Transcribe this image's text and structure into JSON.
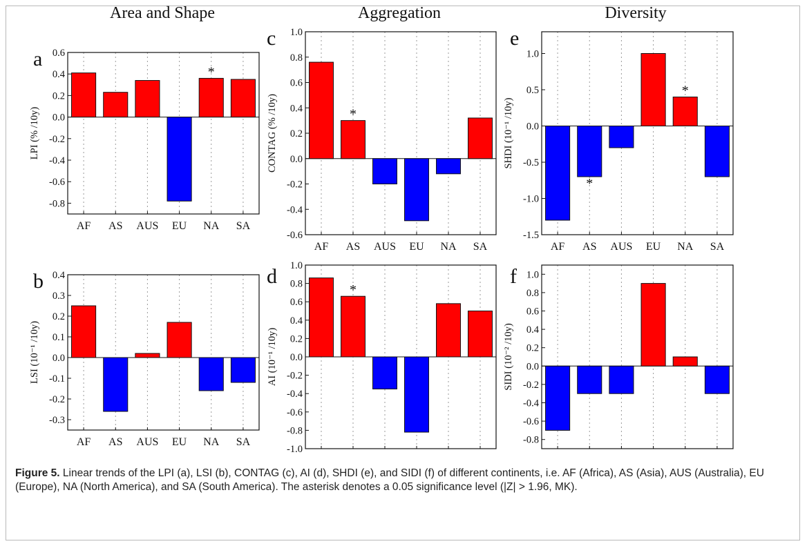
{
  "column_titles": [
    "Area and Shape",
    "Aggregation",
    "Diversity"
  ],
  "caption": {
    "label": "Figure 5.",
    "text": "Linear trends of the LPI (a), LSI (b), CONTAG (c), AI (d), SHDI (e), and SIDI (f) of different continents, i.e. AF (Africa), AS (Asia), AUS (Australia), EU (Europe), NA (North America), and SA (South America). The asterisk denotes a 0.05 significance level (|Z| > 1.96, MK)."
  },
  "colors": {
    "positive": "#ff0000",
    "negative": "#0000ff"
  },
  "chart_data": [
    {
      "panel": "a",
      "type": "bar",
      "ylabel": "LPI (% /10y)",
      "categories": [
        "AF",
        "AS",
        "AUS",
        "EU",
        "NA",
        "SA"
      ],
      "values": [
        0.41,
        0.23,
        0.34,
        -0.78,
        0.36,
        0.35
      ],
      "significant": [
        false,
        false,
        false,
        false,
        true,
        false
      ],
      "ylim": [
        -0.9,
        0.6
      ],
      "yticks": [
        -0.8,
        -0.6,
        -0.4,
        -0.2,
        0.0,
        0.2,
        0.4,
        0.6
      ],
      "tick_labels": [
        "-0.8",
        "-0.6",
        "-0.4",
        "-0.2",
        "0.0",
        "0.2",
        "0.4",
        "0.6"
      ]
    },
    {
      "panel": "b",
      "type": "bar",
      "ylabel": "LSI (10⁻¹ /10y)",
      "categories": [
        "AF",
        "AS",
        "AUS",
        "EU",
        "NA",
        "SA"
      ],
      "values": [
        0.25,
        -0.26,
        0.02,
        0.17,
        -0.16,
        -0.12
      ],
      "significant": [
        false,
        false,
        false,
        false,
        false,
        false
      ],
      "ylim": [
        -0.35,
        0.4
      ],
      "yticks": [
        -0.3,
        -0.2,
        -0.1,
        0.0,
        0.1,
        0.2,
        0.3,
        0.4
      ],
      "tick_labels": [
        "-0.3",
        "-0.2",
        "-0.1",
        "0.0",
        "0.1",
        "0.2",
        "0.3",
        "0.4"
      ]
    },
    {
      "panel": "c",
      "type": "bar",
      "ylabel": "CONTAG (% /10y)",
      "categories": [
        "AF",
        "AS",
        "AUS",
        "EU",
        "NA",
        "SA"
      ],
      "values": [
        0.76,
        0.3,
        -0.2,
        -0.49,
        -0.12,
        0.32
      ],
      "significant": [
        false,
        true,
        false,
        false,
        false,
        false
      ],
      "ylim": [
        -0.6,
        1.0
      ],
      "yticks": [
        -0.6,
        -0.4,
        -0.2,
        0.0,
        0.2,
        0.4,
        0.6,
        0.8,
        1.0
      ],
      "tick_labels": [
        "-0.6",
        "-0.4",
        "-0.2",
        "0.0",
        "0.2",
        "0.4",
        "0.6",
        "0.8",
        "1.0"
      ]
    },
    {
      "panel": "d",
      "type": "bar",
      "ylabel": "AI (10⁻¹ /10y)",
      "categories": [
        "AF",
        "AS",
        "AUS",
        "EU",
        "NA",
        "SA"
      ],
      "values": [
        0.86,
        0.66,
        -0.35,
        -0.82,
        0.58,
        0.5
      ],
      "significant": [
        false,
        true,
        false,
        false,
        false,
        false
      ],
      "ylim": [
        -1.0,
        1.0
      ],
      "yticks": [
        -1.0,
        -0.8,
        -0.6,
        -0.4,
        -0.2,
        0.0,
        0.2,
        0.4,
        0.6,
        0.8,
        1.0
      ],
      "tick_labels": [
        "-1.0",
        "-0.8",
        "-0.6",
        "-0.4",
        "-0.2",
        "0.0",
        "0.2",
        "0.4",
        "0.6",
        "0.8",
        "1.0"
      ]
    },
    {
      "panel": "e",
      "type": "bar",
      "ylabel": "SHDI (10⁻¹ /10y)",
      "categories": [
        "AF",
        "AS",
        "AUS",
        "EU",
        "NA",
        "SA"
      ],
      "values": [
        -1.3,
        -0.7,
        -0.3,
        1.0,
        0.4,
        -0.7
      ],
      "significant": [
        false,
        true,
        false,
        false,
        true,
        false
      ],
      "ylim": [
        -1.5,
        1.3
      ],
      "yticks": [
        -1.5,
        -1.0,
        -0.5,
        0.0,
        0.5,
        1.0
      ],
      "tick_labels": [
        "-1.5",
        "-1.0",
        "-0.5",
        "0.0",
        "0.5",
        "1.0"
      ]
    },
    {
      "panel": "f",
      "type": "bar",
      "ylabel": "SIDI (10⁻² /10y)",
      "categories": [
        "AF",
        "AS",
        "AUS",
        "EU",
        "NA",
        "SA"
      ],
      "values": [
        -0.7,
        -0.3,
        -0.3,
        0.9,
        0.1,
        -0.3
      ],
      "significant": [
        false,
        false,
        false,
        false,
        false,
        false
      ],
      "ylim": [
        -0.9,
        1.1
      ],
      "yticks": [
        -0.8,
        -0.6,
        -0.4,
        -0.2,
        0.0,
        0.2,
        0.4,
        0.6,
        0.8,
        1.0
      ],
      "tick_labels": [
        "-0.8",
        "-0.6",
        "-0.4",
        "-0.2",
        "0.0",
        "0.2",
        "0.4",
        "0.6",
        "0.8",
        "1.0"
      ]
    }
  ]
}
